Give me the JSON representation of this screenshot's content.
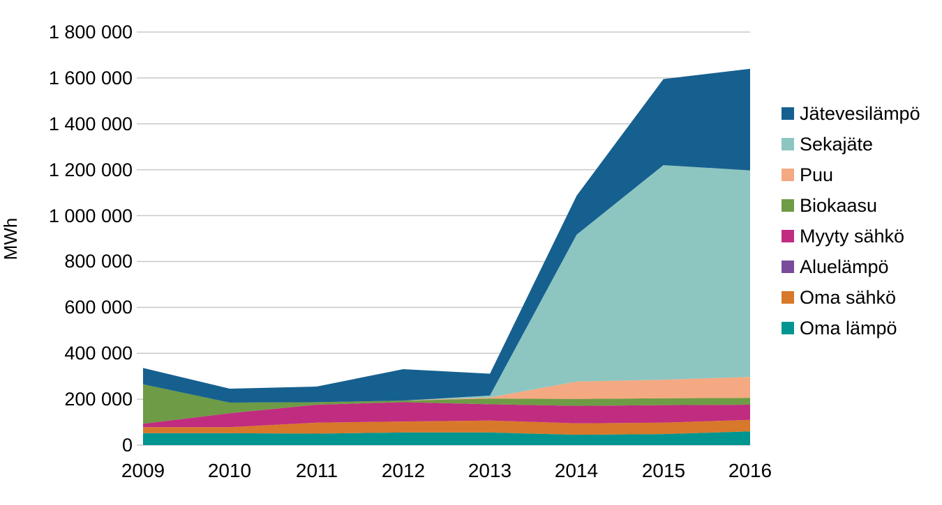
{
  "chart_data": {
    "type": "area",
    "stacked": true,
    "title": "",
    "xlabel": "",
    "ylabel": "MWh",
    "ylim": [
      0,
      1800000
    ],
    "ytick_interval": 200000,
    "ytick_labels": [
      "0",
      "200 000",
      "400 000",
      "600 000",
      "800 000",
      "1 000 000",
      "1 200 000",
      "1 400 000",
      "1 600 000",
      "1 800 000"
    ],
    "categories": [
      "2009",
      "2010",
      "2011",
      "2012",
      "2013",
      "2014",
      "2015",
      "2016"
    ],
    "series": [
      {
        "name": "Oma lämpö",
        "color": "#009590",
        "values": [
          52000,
          52000,
          50000,
          55000,
          55000,
          45000,
          48000,
          60000
        ]
      },
      {
        "name": "Oma sähkö",
        "color": "#D8782A",
        "values": [
          26000,
          26000,
          48000,
          48000,
          52000,
          50000,
          50000,
          50000
        ]
      },
      {
        "name": "Aluelämpö",
        "color": "#7A4A9C",
        "values": [
          0,
          0,
          0,
          0,
          0,
          0,
          0,
          0
        ]
      },
      {
        "name": "Myyty sähkö",
        "color": "#C02C80",
        "values": [
          15000,
          61000,
          78000,
          84000,
          71000,
          76000,
          76000,
          66000
        ]
      },
      {
        "name": "Biokaasu",
        "color": "#6E9B45",
        "values": [
          172000,
          46000,
          11000,
          7000,
          25000,
          30000,
          30000,
          30000
        ]
      },
      {
        "name": "Puu",
        "color": "#F4A982",
        "values": [
          0,
          0,
          0,
          0,
          5000,
          76000,
          81000,
          91000
        ]
      },
      {
        "name": "Sekajäte",
        "color": "#8DC6C1",
        "values": [
          0,
          0,
          0,
          0,
          8000,
          640000,
          935000,
          900000
        ]
      },
      {
        "name": "Jätevesilämpö",
        "color": "#16608F",
        "values": [
          71000,
          61000,
          68000,
          137000,
          95000,
          170000,
          375000,
          443000
        ]
      }
    ],
    "legend": {
      "position": "right",
      "entries": [
        {
          "label": "Jätevesilämpö",
          "color": "#16608F"
        },
        {
          "label": "Sekajäte",
          "color": "#8DC6C1"
        },
        {
          "label": "Puu",
          "color": "#F4A982"
        },
        {
          "label": "Biokaasu",
          "color": "#6E9B45"
        },
        {
          "label": "Myyty sähkö",
          "color": "#C02C80"
        },
        {
          "label": "Aluelämpö",
          "color": "#7A4A9C"
        },
        {
          "label": "Oma sähkö",
          "color": "#D8782A"
        },
        {
          "label": "Oma lämpö",
          "color": "#009590"
        }
      ]
    },
    "grid": true,
    "gridline_color": "#C8C8C8",
    "text_color": "#000000",
    "background": "#FFFFFF"
  }
}
